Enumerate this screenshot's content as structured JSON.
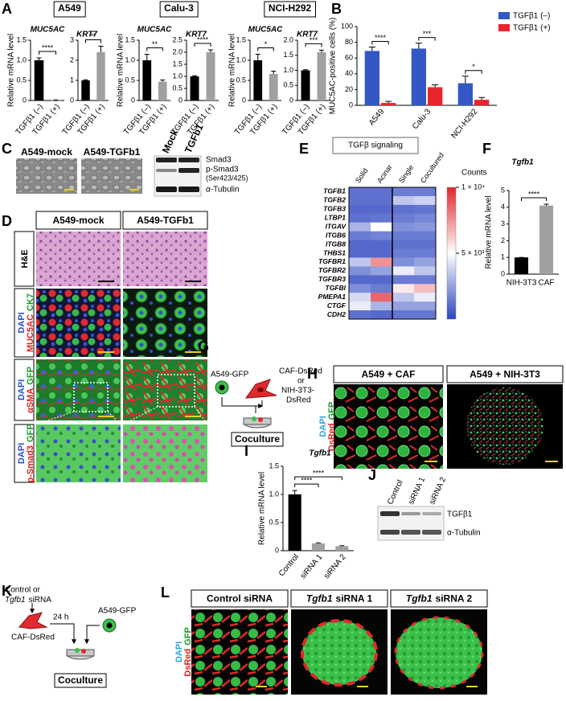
{
  "panel_labels": [
    "A",
    "B",
    "C",
    "D",
    "E",
    "F",
    "G",
    "H",
    "I",
    "J",
    "K",
    "L"
  ],
  "chart_data": [
    {
      "type": "bar",
      "title": "MUC5AC",
      "ylabel": "Relative mRNA level",
      "categories": [
        "TGFβ1 (–)",
        "TGFβ1 (+)"
      ],
      "values": [
        1.0,
        0.01
      ],
      "errors": [
        0.06,
        0.005
      ],
      "colors": [
        "#000000",
        "#a0a0a0"
      ],
      "ylim": [
        0,
        1.5
      ],
      "yticks": [
        0,
        0.5,
        {
          "value": 1,
          "label": "1.0"
        },
        1.5
      ],
      "annotations": [
        "****"
      ]
    },
    {
      "type": "bar",
      "title": "KRT7",
      "categories": [
        "TGFβ1 (–)",
        "TGFβ1 (+)"
      ],
      "values": [
        1.0,
        2.4
      ],
      "errors": [
        0.03,
        0.3
      ],
      "colors": [
        "#000000",
        "#a0a0a0"
      ],
      "ylim": [
        0,
        3
      ],
      "yticks": [
        0,
        1,
        2,
        3
      ],
      "annotations": [
        "**"
      ]
    },
    {
      "type": "bar",
      "title": "MUC5AC",
      "ylabel": "Relative mRNA level",
      "categories": [
        "TGFβ1 (–)",
        "TGFβ1 (+)"
      ],
      "values": [
        1.0,
        0.47
      ],
      "errors": [
        0.15,
        0.04
      ],
      "colors": [
        "#000000",
        "#a0a0a0"
      ],
      "ylim": [
        0,
        1.5
      ],
      "yticks": [
        0,
        0.5,
        {
          "value": 1,
          "label": "1.0"
        },
        1.5
      ],
      "annotations": [
        "**"
      ]
    },
    {
      "type": "bar",
      "title": "KRT7",
      "categories": [
        "TGFβ1 (–)",
        "TGFβ1 (+)"
      ],
      "values": [
        1.0,
        2.0
      ],
      "errors": [
        0.03,
        0.1
      ],
      "colors": [
        "#000000",
        "#a0a0a0"
      ],
      "ylim": [
        0,
        2.5
      ],
      "yticks": [
        0,
        0.5,
        {
          "value": 1,
          "label": "1.0"
        },
        1.5,
        {
          "value": 2,
          "label": "2.0"
        },
        2.5
      ],
      "annotations": [
        "****"
      ]
    },
    {
      "type": "bar",
      "title": "MUC5AC",
      "ylabel": "Relative mRNA level",
      "categories": [
        "TGFβ1 (–)",
        "TGFβ1 (+)"
      ],
      "values": [
        1.0,
        0.66
      ],
      "errors": [
        0.15,
        0.07
      ],
      "colors": [
        "#000000",
        "#a0a0a0"
      ],
      "ylim": [
        0,
        1.5
      ],
      "yticks": [
        0,
        0.5,
        {
          "value": 1,
          "label": "1.0"
        },
        1.5
      ],
      "annotations": [
        "*"
      ]
    },
    {
      "type": "bar",
      "title": "KRT7",
      "categories": [
        "TGFβ1 (–)",
        "TGFβ1 (+)"
      ],
      "values": [
        1.0,
        1.6
      ],
      "errors": [
        0.02,
        0.07
      ],
      "colors": [
        "#000000",
        "#a0a0a0"
      ],
      "ylim": [
        0,
        2
      ],
      "yticks": [
        0,
        0.5,
        {
          "value": 1,
          "label": "1.0"
        },
        1.5,
        {
          "value": 2,
          "label": "2.0"
        }
      ],
      "annotations": [
        "***"
      ]
    },
    {
      "type": "bar",
      "ylabel": "MUC5AC-positive cells (%)",
      "categories": [
        "A549",
        "Calu-3",
        "NCI-H292"
      ],
      "series": [
        {
          "name": "TGFβ1 (–)",
          "color": "#3357c4",
          "values": [
            69,
            72,
            28
          ],
          "errors": [
            5,
            7,
            9
          ]
        },
        {
          "name": "TGFβ1 (+)",
          "color": "#e8262b",
          "values": [
            3,
            23,
            7
          ],
          "errors": [
            2,
            3,
            3
          ]
        }
      ],
      "ylim": [
        0,
        100
      ],
      "yticks": [
        0,
        20,
        40,
        60,
        80,
        100
      ],
      "annotations": [
        "****",
        "***",
        "*"
      ],
      "legend": "upper right"
    },
    {
      "type": "heatmap",
      "title": "TGFβ signaling",
      "columns": [
        "Solid",
        "Acinar",
        "Single",
        "Cocultured"
      ],
      "rows": [
        "TGFB1",
        "TGFB2",
        "TGFB3",
        "LTBP1",
        "ITGAV",
        "ITGB6",
        "ITGB8",
        "THBS1",
        "TGFBR1",
        "TGFBR2",
        "TGFBR3",
        "TGFBI",
        "PMEPA1",
        "CTGF",
        "CDH2"
      ],
      "values": [
        [
          1200,
          1200,
          1500,
          1500
        ],
        [
          1200,
          1200,
          3500,
          3800
        ],
        [
          1000,
          1000,
          1200,
          1300
        ],
        [
          1200,
          1300,
          1500,
          1800
        ],
        [
          3000,
          5000,
          2000,
          2200
        ],
        [
          1500,
          1700,
          1500,
          1500
        ],
        [
          1000,
          1000,
          1200,
          1200
        ],
        [
          1000,
          1000,
          1500,
          1500
        ],
        [
          3500,
          7500,
          2000,
          2500
        ],
        [
          2000,
          2500,
          4500,
          3500
        ],
        [
          1000,
          1000,
          1500,
          1500
        ],
        [
          2000,
          1500,
          5500,
          6500
        ],
        [
          4000,
          8500,
          3500,
          4500
        ],
        [
          4500,
          3000,
          2500,
          2500
        ],
        [
          1200,
          1000,
          1300,
          1300
        ]
      ],
      "colorbar_title": "Counts",
      "clim": [
        0,
        10000
      ],
      "colorbar_ticks": [
        {
          "value": 10000,
          "label": "1 × 10⁴"
        },
        {
          "value": 5000,
          "label": "5 × 10³"
        }
      ]
    },
    {
      "type": "bar",
      "title": "Tgfb1",
      "ylabel": "Relative mRNA level",
      "categories": [
        "NIH-3T3",
        "CAF"
      ],
      "values": [
        1.0,
        4.1
      ],
      "errors": [
        0,
        0.08
      ],
      "colors": [
        "#000000",
        "#a0a0a0"
      ],
      "ylim": [
        0,
        5
      ],
      "yticks": [
        0,
        1,
        2,
        3,
        4,
        5
      ],
      "annotations": [
        "****"
      ]
    },
    {
      "type": "bar",
      "title": "Tgfb1",
      "ylabel": "Relative mRNA level",
      "categories": [
        "Control",
        "siRNA 1",
        "siRNA 2"
      ],
      "values": [
        1.0,
        0.13,
        0.08
      ],
      "errors": [
        0.07,
        0.01,
        0.01
      ],
      "colors": [
        "#000000",
        "#a0a0a0",
        "#a0a0a0"
      ],
      "ylim": [
        0,
        1.5
      ],
      "yticks": [
        0,
        0.5,
        {
          "value": 1,
          "label": "1.0"
        },
        1.5
      ],
      "annotations": [
        "****",
        "****"
      ]
    }
  ],
  "panel_a": {
    "cell_lines": [
      "A549",
      "Calu-3",
      "NCI-H292"
    ]
  },
  "panel_c": {
    "images": [
      "A549-mock",
      "A549-TGFb1"
    ],
    "lanes": [
      "Mock",
      "TGFb1"
    ],
    "bands": [
      "Smad3",
      "p-Smad3",
      "α-Tubulin"
    ],
    "band_note": "(Ser423/425)"
  },
  "panel_d": {
    "columns": [
      "A549-mock",
      "A549-TGFb1"
    ],
    "rows": [
      [
        [
          {
            "text": "H&E",
            "color": "#000000"
          }
        ]
      ],
      [
        [
          {
            "text": "DAPI",
            "color": "#2a4fd0"
          }
        ],
        [
          {
            "text": "MUC5AC",
            "color": "#e02020"
          },
          {
            "text": "CK7",
            "color": "#1a9a2a"
          }
        ]
      ],
      [
        [
          {
            "text": "DAPI",
            "color": "#2a4fd0"
          }
        ],
        [
          {
            "text": "αSMA",
            "color": "#e02020"
          },
          {
            "text": "GFP",
            "color": "#1a9a2a"
          }
        ]
      ],
      [
        [
          {
            "text": "DAPI",
            "color": "#2a4fd0"
          }
        ],
        [
          {
            "text": "p-Smad3",
            "color": "#e02020"
          },
          {
            "text": "GFP",
            "color": "#1a9a2a"
          }
        ]
      ]
    ]
  },
  "panel_g": {
    "cell": "A549-GFP",
    "fibroblast": "CAF-DsRed",
    "or": "or",
    "alternative": [
      "NIH-3T3-",
      "DsRed"
    ],
    "coculture": "Coculture"
  },
  "panel_h": {
    "columns": [
      "A549 + CAF",
      "A549 + NIH-3T3"
    ],
    "stains": [
      [
        {
          "text": "DAPI",
          "color": "#2aa8e0"
        }
      ],
      [
        {
          "text": "DsRed",
          "color": "#e02020"
        },
        {
          "text": "GFP",
          "color": "#1a9a2a"
        }
      ]
    ]
  },
  "panel_j": {
    "lanes": [
      "Control",
      "siRNA 1",
      "siRNA 2"
    ],
    "bands": [
      "TGFβ1",
      "α-Tubulin"
    ]
  },
  "panel_k": {
    "treatment": "Control or",
    "treatment_gene": "Tgfb1",
    "treatment_suffix": "siRNA",
    "time": "24 h",
    "cell": "A549-GFP",
    "fibroblast": "CAF-DsRed",
    "coculture": "Coculture"
  },
  "panel_l": {
    "columns": [
      {
        "text": "Control siRNA"
      },
      {
        "gene": "Tgfb1",
        "text": "siRNA 1"
      },
      {
        "gene": "Tgfb1",
        "text": "siRNA 2"
      }
    ],
    "stains": [
      [
        {
          "text": "DAPI",
          "color": "#2aa8e0"
        }
      ],
      [
        {
          "text": "DsRed",
          "color": "#e02020"
        },
        {
          "text": "GFP",
          "color": "#1a9a2a"
        }
      ]
    ]
  }
}
